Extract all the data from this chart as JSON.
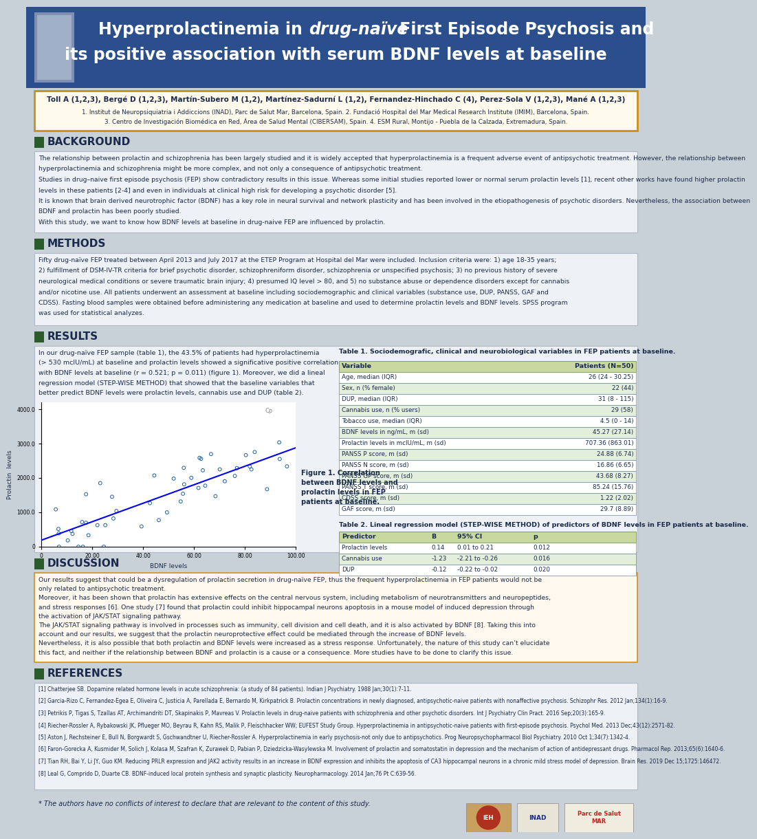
{
  "poster_bg": "#c8d0d8",
  "header_bg": "#2b4e8c",
  "title_line1_normal": "Hyperprolactinemia in ",
  "title_line1_italic": "drug-naïve",
  "title_line1_rest": " First Episode Psychosis and",
  "title_line2": "its positive association with serum BDNF levels at baseline",
  "authors": "Toll A (1,2,3), Bergé D (1,2,3), Martín-Subero M (1,2), Martínez-Sadurní L (1,2), Fernandez-Hinchado C (4), Perez-Sola V (1,2,3), Mané A (1,2,3)",
  "affil1": "1. Institut de Neuropsiquiatria i Addiccions (INAD), Parc de Salut Mar, Barcelona, Spain. 2. Fundació Hospital del Mar Medical Research Institute (IMIM), Barcelona, Spain.",
  "affil2": "3. Centro de Investigación Biomédica en Red, Área de Salud Mental (CIBERSAM), Spain. 4. ESM Rural, Montijo - Puebla de la Calzada, Extremadura, Spain.",
  "authors_box_bg": "#fffaec",
  "authors_box_border": "#c8901a",
  "section_icon_color": "#2b5a2b",
  "section_text_color": "#1a2a4a",
  "body_bg": "#eef2f6",
  "body_border": "#b0b8c8",
  "bg_text": "The relationship between prolactin and schizophrenia has been largely studied and it is widely accepted that hyperprolactinemia is a frequent adverse event of antipsychotic treatment. However, the relationship between hyperprolactinemia and schizophrenia might be more complex, and not only a consequence of antipsychotic treatment.\nStudies in drug–naive first episode psychosis (FEP) show contradictory results in this issue. Whereas some initial studies reported lower or normal serum prolactin levels [1], recent other works have found higher prolactin levels in these patients [2-4] and even in individuals at clinical high risk for developing a psychotic disorder [5].\nIt is known that brain derived neurotrophic factor (BDNF) has a key role in neural survival and network plasticity and has been involved in the etiopathogenesis of psychotic disorders. Nevertheless, the association between BDNF and prolactin has been poorly studied.\nWith this study, we want to know how BDNF levels at baseline in drug-naive FEP are influenced by prolactin.",
  "methods_text": "Fifty drug-naïve FEP treated between April 2013 and July 2017 at the ETEP Program at Hospital del Mar were included. Inclusion criteria were: 1) age 18-35 years; 2) fulfillment of DSM-IV-TR criteria for brief psychotic disorder, schizophreniform disorder, schizophrenia or unspecified psychosis; 3) no previous history of severe neurological medical conditions or severe traumatic brain injury; 4) presumed IQ level > 80, and 5) no substance abuse or dependence disorders except for cannabis and/or nicotine use. All patients underwent an assessment at baseline including sociodemographic and clinical variables (substance use, DUP, PANSS, GAF and CDSS). Fasting blood samples were obtained before administering any medication at baseline and used to determine prolactin levels and BDNF levels. SPSS program was used for statistical analyzes.",
  "results_text": "In our drug-naïve FEP sample (table 1), the 43.5% of patients had hyperprolactinemia\n(> 530 mcIU/mL) at baseline and prolactin levels showed a significative positive correlation\nwith BDNF levels at baseline (r = 0.521; p = 0.011) (figure 1). Moreover, we did a lineal\nregression model (STEP-WISE METHOD) that showed that the baseline variables that\nbetter predict BDNF levels were prolactin levels, cannabis use and DUP (table 2).",
  "table1_title": "Table 1. Sociodemografic, clinical and neurobiological variables in FEP patients at baseline.",
  "table1_headers": [
    "Variable",
    "Patients (N=50)"
  ],
  "table1_rows": [
    [
      "Age, median (IQR)",
      "26 (24 - 30.25)"
    ],
    [
      "Sex, n (% female)",
      "22 (44)"
    ],
    [
      "DUP, median (IQR)",
      "31 (8 - 115)"
    ],
    [
      "Cannabis use, n (% users)",
      "29 (58)"
    ],
    [
      "Tobacco use, median (IQR)",
      "4.5 (0 - 14)"
    ],
    [
      "BDNF levels in ng/mL, m (sd)",
      "45.27 (27.14)"
    ],
    [
      "Prolactin levels in mcIU/mL, m (sd)",
      "707.36 (863.01)"
    ],
    [
      "PANSS P score, m (sd)",
      "24.88 (6.74)"
    ],
    [
      "PANSS N score, m (sd)",
      "16.86 (6.65)"
    ],
    [
      "PANSS GP score, m (sd)",
      "43.68 (8.27)"
    ],
    [
      "PANSS T score, m (sd)",
      "85.24 (15.76)"
    ],
    [
      "CDSS score, m (sd)",
      "1.22 (2.02)"
    ],
    [
      "GAF score, m (sd)",
      "29.7 (8.89)"
    ]
  ],
  "table2_title": "Table 2. Lineal regression model (STEP-WISE METHOD) of predictors of BDNF levels in FEP patients at baseline.",
  "table2_headers": [
    "Predictor",
    "B",
    "95% CI",
    "p"
  ],
  "table2_rows": [
    [
      "Prolactin levels",
      "0.14",
      "0.01 to 0.21",
      "0.012"
    ],
    [
      "Cannabis use",
      "-1.23",
      "-2.21 to -0.26",
      "0.016"
    ],
    [
      "DUP",
      "-0.12",
      "-0.22 to -0.02",
      "0.020"
    ]
  ],
  "figure_caption": "Figure 1. Correlation\nbetween BDNF levels and\nprolactin levels in FEP\npatients at baseline.",
  "disc_text": "Our results suggest that could be a dysregulation of prolactin secretion in drug-naïve FEP, thus the frequent hyperprolactinemia in FEP patients would not be only related to antipsychotic treatment.\nMoreover, it has been shown that prolactin has extensive effects on the central nervous system, including metabolism of neurotransmitters and neuropeptides, and stress responses [6]. One study [7] found that prolactin could inhibit hippocampal neurons apoptosis in a mouse model of induced depression through the activation of JAK/STAT signaling pathway.\nThe JAK/STAT signaling pathway is involved in processes such as immunity, cell division and cell death, and it is also activated by BDNF [8]. Taking this into account and our results, we suggest that the prolactin neuroprotective effect could be mediated through the increase of BDNF levels.\nNevertheless, it is also possible that both prolactin and BDNF levels were increased as a stress response. Unfortunately, the nature of this study can’t elucidate this fact, and neither if the relationship between BDNF and prolactin is a cause or a consequence. More studies have to be done to clarify this issue.",
  "disc_bg": "#fff8ee",
  "disc_border": "#d4901a",
  "refs": "[1] Chatterjee SB. Dopamine related hormone levels in acute schizophrenia: (a study of 84 patients). Indian J Psychiatry. 1988 Jan;30(1):7-11.\n[2] Garcia-Rizo C, Fernandez-Egea E, Oliveira C, Justicia A, Parellada E, Bernardo M, Kirkpatrick B. Prolactin concentrations in newly diagnosed, antipsychotic-naive patients with nonaffective psychosis. Schizophr Res. 2012 Jan;134(1):16-9.\n[3] Petrikis P, Tigas S, Tzallas AT, Archimandriti DT, Skapinakis P, Mavreas V. Prolactin levels in drug-naive patients with schizophrenia and other psychotic disorders. Int J Psychiatry Clin Pract. 2016 Sep;20(3):165-9.\n[4] Riecher-Rossler A, Rybakowski JK, Pflueger MO, Beyrau R, Kahn RS, Malik P, Fleischhacker WW; EUFEST Study Group. Hyperprolactinemia in antipsychotic-naive patients with first-episode psychosis. Psychol Med. 2013 Dec;43(12):2571-82.\n[5] Aston J, Rechsteiner E, Bull N, Borgwardt S, Gschwandtner U, Riecher-Rossler A. Hyperprolactinemia in early psychosis-not only due to antipsychotics. Prog Neuropsychopharmacol Biol Psychiatry. 2010 Oct 1;34(7):1342-4.\n[6] Faron-Gorecka A, Kusmider M, Solich J, Kolasa M, Szafran K, Zurawek D, Pabian P, Dziedzicka-Wasylewska M. Involvement of prolactin and somatostatin in depression and the mechanism of action of antidepressant drugs. Pharmacol Rep. 2013;65(6):1640-6.\n[7] Tian RH, Bai Y, Li JY, Guo KM. Reducing PRLR expression and JAK2 activity results in an increase in BDNF expression and inhibits the apoptosis of CA3 hippocampal neurons in a chronic mild stress model of depression. Brain Res. 2019 Dec 15;1725:146472.\n[8] Leal G, Comprido D, Duarte CB. BDNF-induced local protein synthesis and synaptic plasticity. Neuropharmacology. 2014 Jan;76 Pt C:639-56.",
  "conflict": "* The authors have no conflicts of interest to declare that are relevant to the content of this study.",
  "table_hdr_bg": "#c8d8a0",
  "table_row_odd": "#ffffff",
  "table_row_even": "#e4eedd",
  "table_border": "#6a9a4a"
}
